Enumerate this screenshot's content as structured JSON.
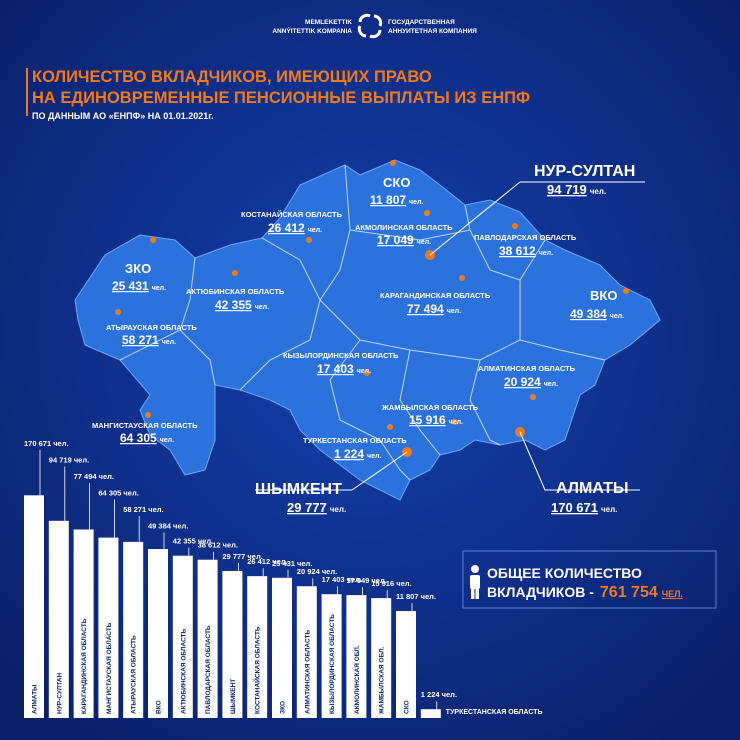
{
  "header": {
    "logo_left": [
      "MEMLEKETTIK",
      "ANNÝITETTIK KOMPANIA"
    ],
    "logo_right": [
      "ГОСУДАРСТВЕННАЯ",
      "АННУИТЕТНАЯ КОМПАНИЯ"
    ]
  },
  "title": [
    "КОЛИЧЕСТВО ВКЛАДЧИКОВ, ИМЕЮЩИХ ПРАВО",
    "НА ЕДИНОВРЕМЕННЫЕ ПЕНСИОННЫЕ ВЫПЛАТЫ ИЗ ЕНПФ"
  ],
  "subtitle": "ПО ДАННЫМ АО «ЕНПФ» НА 01.01.2021г.",
  "map": {
    "unit": "чел.",
    "regions": [
      {
        "name": "СКО",
        "value": "11 807"
      },
      {
        "name": "КОСТАНАЙСКАЯ ОБЛАСТЬ",
        "value": "26 412"
      },
      {
        "name": "АКМОЛИНСКАЯ ОБЛАСТЬ",
        "value": "17 049"
      },
      {
        "name": "ПАВЛОДАРСКАЯ ОБЛАСТЬ",
        "value": "38 612"
      },
      {
        "name": "ЗКО",
        "value": "25 431"
      },
      {
        "name": "АКТЮБИНСКАЯ ОБЛАСТЬ",
        "value": "42 355"
      },
      {
        "name": "КАРАГАНДИНСКАЯ ОБЛАСТЬ",
        "value": "77 494"
      },
      {
        "name": "ВКО",
        "value": "49 384"
      },
      {
        "name": "АТЫРАУСКАЯ ОБЛАСТЬ",
        "value": "58 271"
      },
      {
        "name": "КЫЗЫЛОРДИНСКАЯ ОБЛАСТЬ",
        "value": "17 403"
      },
      {
        "name": "АЛМАТИНСКАЯ ОБЛАСТЬ",
        "value": "20 924"
      },
      {
        "name": "ЖАМБЫЛСКАЯ ОБЛАСТЬ",
        "value": "15 916"
      },
      {
        "name": "МАНГИСТАУСКАЯ ОБЛАСТЬ",
        "value": "64 305"
      },
      {
        "name": "ТУРКЕСТАНСКАЯ ОБЛАСТЬ",
        "value": "1 224"
      }
    ],
    "cities": [
      {
        "name": "НУР-СУЛТАН",
        "value": "94 719"
      },
      {
        "name": "ШЫМКЕНТ",
        "value": "29 777"
      },
      {
        "name": "АЛМАТЫ",
        "value": "170 671"
      }
    ]
  },
  "total": {
    "line1": "ОБЩЕЕ КОЛИЧЕСТВО",
    "line2": "ВКЛАДЧИКОВ -",
    "value": "761 754",
    "unit": "ЧЕЛ."
  },
  "chart_data": {
    "type": "bar",
    "categories": [
      "АЛМАТЫ",
      "НУР-СУЛТАН",
      "КАРАГАНДИНСКАЯ ОБЛАСТЬ",
      "МАНГИСТАУСКАЯ ОБЛАСТЬ",
      "АТЫРАУСКАЯ ОБЛАСТЬ",
      "ВКО",
      "АКТЮБИНСКАЯ ОБЛАСТЬ",
      "ПАВЛОДАРСКАЯ ОБЛАСТЬ",
      "ШЫМКЕНТ",
      "КОСТАНАЙСКАЯ ОБЛАСТЬ",
      "ЗКО",
      "АЛМАТИНСКАЯ ОБЛАСТЬ",
      "КЫЗЫЛОРДИНСКАЯ ОБЛАСТЬ",
      "АКМОЛИНСКАЯ ОБЛ.",
      "ЖАМБЫЛСКАЯ ОБЛ.",
      "СКО",
      "ТУРКЕСТАНСКАЯ ОБЛАСТЬ"
    ],
    "values": [
      170671,
      94719,
      77494,
      64305,
      58271,
      49384,
      42355,
      38612,
      29777,
      26412,
      25431,
      20924,
      17403,
      17049,
      15916,
      11807,
      1224
    ],
    "value_labels": [
      "170 671 чел.",
      "94 719 чел.",
      "77 494 чел.",
      "64 305 чел.",
      "58 271 чел.",
      "49 384 чел.",
      "42 355 чел.",
      "38 612 чел.",
      "29 777 чел.",
      "26 412 чел.",
      "25 431 чел.",
      "20 924 чел.",
      "17 403 чел.",
      "17 049 чел.",
      "15 916 чел.",
      "11 807 чел.",
      "1 224 чел."
    ],
    "color": "#ffffff",
    "label_color": "#0b2677",
    "log_scale": true,
    "ylim": [
      1000,
      180000
    ]
  }
}
